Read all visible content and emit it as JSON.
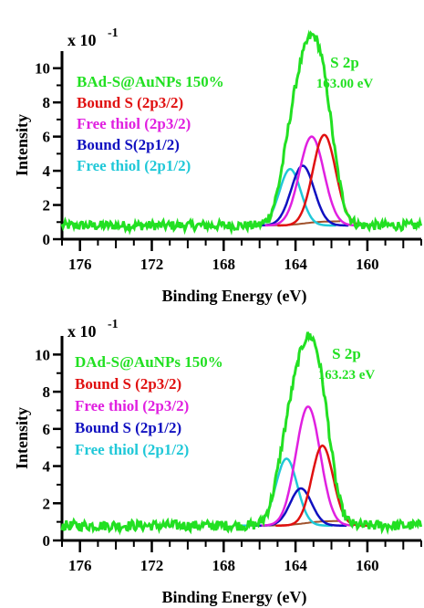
{
  "colors": {
    "fit": "#22e022",
    "bound_2p32": "#e01010",
    "free_2p32": "#e020e0",
    "bound_2p12": "#1010c0",
    "free_2p12": "#20c8d8",
    "background": "#a0522d",
    "axis": "#000000"
  },
  "chart_data": [
    {
      "type": "line",
      "title": "",
      "xlabel": "Binding Energy (eV)",
      "ylabel": "Intensity",
      "multiplier_label": "x 10",
      "multiplier_exp": "-1",
      "xlim": [
        177,
        157
      ],
      "ylim": [
        0,
        11
      ],
      "x_ticks": [
        "176",
        "172",
        "168",
        "164",
        "160"
      ],
      "y_ticks": [
        "0",
        "2",
        "4",
        "6",
        "8",
        "10"
      ],
      "annotation_lines": [
        "S 2p",
        "163.00 eV"
      ],
      "legend": [
        {
          "label": "BAd-S@AuNPs 150%",
          "color": "#22e022"
        },
        {
          "label": "Bound S (2p3/2)",
          "color": "#e01010"
        },
        {
          "label": "Free thiol (2p3/2)",
          "color": "#e020e0"
        },
        {
          "label": "Bound S(2p1/2)",
          "color": "#1010c0"
        },
        {
          "label": "Free thiol (2p1/2)",
          "color": "#20c8d8"
        }
      ],
      "baseline": 0.8,
      "peaks": [
        {
          "name": "Bound S (2p3/2)",
          "center": 162.4,
          "height": 5.3,
          "fwhm": 1.5,
          "color": "#e01010"
        },
        {
          "name": "Free thiol (2p3/2)",
          "center": 163.1,
          "height": 5.2,
          "fwhm": 1.6,
          "color": "#e020e0"
        },
        {
          "name": "Bound S(2p1/2)",
          "center": 163.6,
          "height": 3.5,
          "fwhm": 1.5,
          "color": "#1010c0"
        },
        {
          "name": "Free thiol (2p1/2)",
          "center": 164.3,
          "height": 3.3,
          "fwhm": 1.4,
          "color": "#20c8d8"
        }
      ]
    },
    {
      "type": "line",
      "title": "",
      "xlabel": "Binding Energy (eV)",
      "ylabel": "Intensity",
      "multiplier_label": "x 10",
      "multiplier_exp": "-1",
      "xlim": [
        177,
        157
      ],
      "ylim": [
        0,
        11
      ],
      "x_ticks": [
        "176",
        "172",
        "168",
        "164",
        "160"
      ],
      "y_ticks": [
        "0",
        "2",
        "4",
        "6",
        "8",
        "10"
      ],
      "annotation_lines": [
        "S 2p",
        "163.23 eV"
      ],
      "legend": [
        {
          "label": "DAd-S@AuNPs 150%",
          "color": "#22e022"
        },
        {
          "label": "Bound S (2p3/2)",
          "color": "#e01010"
        },
        {
          "label": "Free thiol (2p3/2)",
          "color": "#e020e0"
        },
        {
          "label": "Bound S (2p1/2)",
          "color": "#1010c0"
        },
        {
          "label": "Free thiol (2p1/2)",
          "color": "#20c8d8"
        }
      ],
      "baseline": 0.8,
      "peaks": [
        {
          "name": "Bound S (2p3/2)",
          "center": 162.5,
          "height": 4.3,
          "fwhm": 1.4,
          "color": "#e01010"
        },
        {
          "name": "Free thiol (2p3/2)",
          "center": 163.3,
          "height": 6.4,
          "fwhm": 1.6,
          "color": "#e020e0"
        },
        {
          "name": "Bound S (2p1/2)",
          "center": 163.7,
          "height": 2.0,
          "fwhm": 1.4,
          "color": "#1010c0"
        },
        {
          "name": "Free thiol (2p1/2)",
          "center": 164.5,
          "height": 3.6,
          "fwhm": 1.4,
          "color": "#20c8d8"
        }
      ]
    }
  ]
}
